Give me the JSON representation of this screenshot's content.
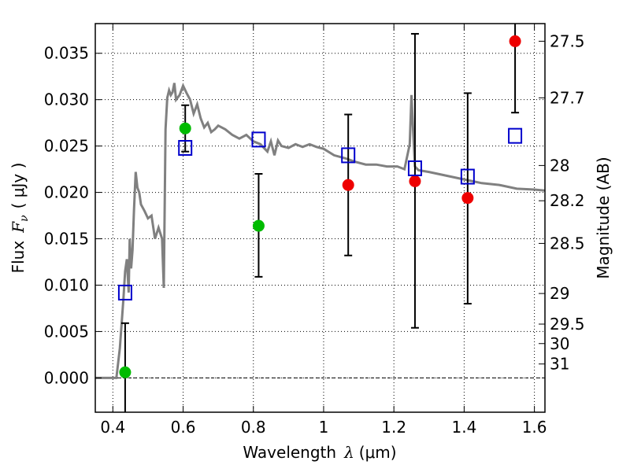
{
  "chart_data": {
    "type": "scatter",
    "xlabel": "Wavelength",
    "xlabel_symbol": "λ",
    "xlabel_unit": "(μm)",
    "ylabel": "Flux",
    "ylabel_symbol": "F",
    "ylabel_subscript": "ν",
    "ylabel_unit": "( μJy )",
    "y2label": "Magnitude (AB)",
    "xlim": [
      0.35,
      1.63
    ],
    "ylim": [
      -0.0037,
      0.0382
    ],
    "grid": true,
    "x_ticks": [
      {
        "value": 0.4,
        "label": "0.4"
      },
      {
        "value": 0.6,
        "label": "0.6"
      },
      {
        "value": 0.8,
        "label": "0.8"
      },
      {
        "value": 1.0,
        "label": "1"
      },
      {
        "value": 1.2,
        "label": "1.2"
      },
      {
        "value": 1.4,
        "label": "1.4"
      },
      {
        "value": 1.6,
        "label": "1.6"
      }
    ],
    "y_ticks": [
      {
        "value": 0.0,
        "label": "0.000"
      },
      {
        "value": 0.005,
        "label": "0.005"
      },
      {
        "value": 0.01,
        "label": "0.010"
      },
      {
        "value": 0.015,
        "label": "0.015"
      },
      {
        "value": 0.02,
        "label": "0.020"
      },
      {
        "value": 0.025,
        "label": "0.025"
      },
      {
        "value": 0.03,
        "label": "0.030"
      },
      {
        "value": 0.035,
        "label": "0.035"
      }
    ],
    "y2_ticks": [
      {
        "label": "27.5",
        "flux": 0.0363
      },
      {
        "label": "27.7",
        "flux": 0.0302
      },
      {
        "label": "28",
        "flux": 0.0229
      },
      {
        "label": "28.2",
        "flux": 0.0191
      },
      {
        "label": "28.5",
        "flux": 0.0145
      },
      {
        "label": "29",
        "flux": 0.0091
      },
      {
        "label": "29.5",
        "flux": 0.0058
      },
      {
        "label": "30",
        "flux": 0.0037
      },
      {
        "label": "31",
        "flux": 0.0015
      }
    ],
    "model_spectrum": {
      "name": "model",
      "color": "#808080",
      "x": [
        0.35,
        0.41,
        0.42,
        0.43,
        0.435,
        0.44,
        0.445,
        0.448,
        0.452,
        0.456,
        0.46,
        0.465,
        0.47,
        0.475,
        0.48,
        0.49,
        0.5,
        0.51,
        0.52,
        0.53,
        0.54,
        0.545,
        0.55,
        0.555,
        0.56,
        0.565,
        0.57,
        0.575,
        0.58,
        0.59,
        0.6,
        0.61,
        0.62,
        0.63,
        0.64,
        0.65,
        0.66,
        0.67,
        0.68,
        0.69,
        0.7,
        0.72,
        0.74,
        0.76,
        0.78,
        0.8,
        0.82,
        0.84,
        0.85,
        0.86,
        0.87,
        0.88,
        0.9,
        0.92,
        0.94,
        0.96,
        0.98,
        1.0,
        1.03,
        1.06,
        1.09,
        1.12,
        1.15,
        1.18,
        1.21,
        1.23,
        1.245,
        1.25,
        1.255,
        1.26,
        1.27,
        1.3,
        1.35,
        1.4,
        1.45,
        1.5,
        1.55,
        1.6,
        1.63
      ],
      "y": [
        0.0,
        0.0,
        0.0032,
        0.0085,
        0.0115,
        0.0128,
        0.0092,
        0.015,
        0.0118,
        0.0138,
        0.018,
        0.0222,
        0.0205,
        0.02,
        0.0187,
        0.018,
        0.0172,
        0.0175,
        0.015,
        0.0162,
        0.015,
        0.0097,
        0.0268,
        0.0302,
        0.031,
        0.0305,
        0.0308,
        0.0318,
        0.03,
        0.0305,
        0.0315,
        0.0307,
        0.03,
        0.0285,
        0.0295,
        0.028,
        0.027,
        0.0275,
        0.0265,
        0.0268,
        0.0272,
        0.0268,
        0.0262,
        0.0258,
        0.0262,
        0.0255,
        0.0252,
        0.0244,
        0.0255,
        0.024,
        0.0256,
        0.025,
        0.0248,
        0.0252,
        0.0249,
        0.0252,
        0.0249,
        0.0247,
        0.024,
        0.0237,
        0.0233,
        0.023,
        0.023,
        0.0228,
        0.0228,
        0.0225,
        0.0252,
        0.0305,
        0.0265,
        0.0228,
        0.0224,
        0.0222,
        0.0218,
        0.0214,
        0.021,
        0.0208,
        0.0204,
        0.0203,
        0.0202
      ]
    },
    "series": [
      {
        "name": "green",
        "color": "#00bb00",
        "marker": "circle",
        "points": [
          {
            "x": 0.435,
            "y": 0.0006,
            "err_low": 0.006,
            "err_high": 0.0053
          },
          {
            "x": 0.606,
            "y": 0.0269,
            "err_low": 0.0025,
            "err_high": 0.0025
          },
          {
            "x": 0.815,
            "y": 0.0164,
            "err_low": 0.0055,
            "err_high": 0.0056
          }
        ]
      },
      {
        "name": "red",
        "color": "#ee0000",
        "marker": "circle",
        "points": [
          {
            "x": 1.07,
            "y": 0.0208,
            "err_low": 0.0076,
            "err_high": 0.0076
          },
          {
            "x": 1.26,
            "y": 0.0212,
            "err_low": 0.0158,
            "err_high": 0.0159
          },
          {
            "x": 1.41,
            "y": 0.0194,
            "err_low": 0.0114,
            "err_high": 0.0113
          },
          {
            "x": 1.545,
            "y": 0.0363,
            "err_low": 0.0077,
            "err_high": 0.0035
          }
        ]
      },
      {
        "name": "blue",
        "color": "#0000cc",
        "marker": "square",
        "points": [
          {
            "x": 0.435,
            "y": 0.0092
          },
          {
            "x": 0.606,
            "y": 0.0248
          },
          {
            "x": 0.815,
            "y": 0.0257
          },
          {
            "x": 1.07,
            "y": 0.024
          },
          {
            "x": 1.26,
            "y": 0.0226
          },
          {
            "x": 1.41,
            "y": 0.0217
          },
          {
            "x": 1.545,
            "y": 0.0261
          }
        ]
      }
    ]
  }
}
